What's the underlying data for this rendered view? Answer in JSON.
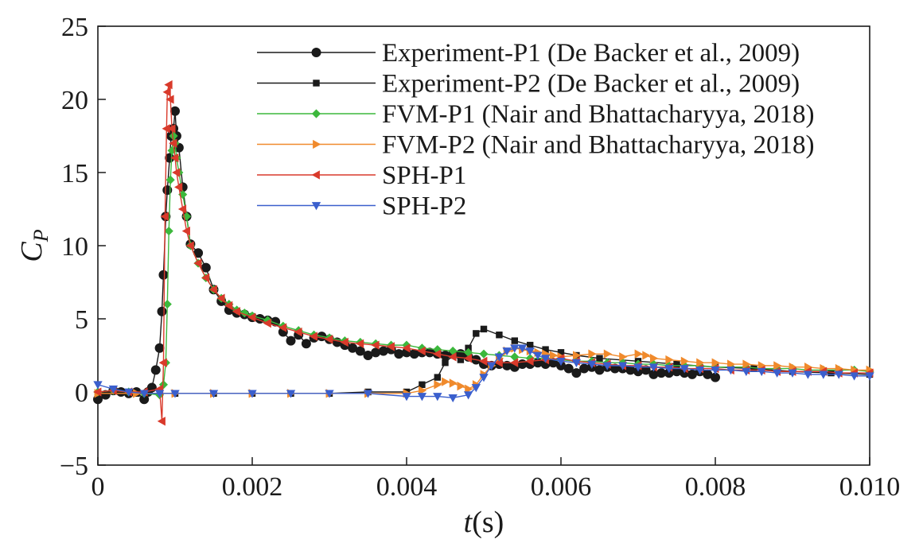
{
  "chart_data": {
    "type": "line",
    "title": "",
    "xlabel_italic": "t",
    "xlabel_unit": "(s)",
    "ylabel_main": "C",
    "ylabel_sub": "P",
    "xlim": [
      0,
      0.01
    ],
    "ylim": [
      -5,
      25
    ],
    "grid": false,
    "legend_position": "top-right",
    "x_ticks": [
      0,
      0.002,
      0.004,
      0.006,
      0.008,
      0.01
    ],
    "x_tick_labels": [
      "0",
      "0.002",
      "0.004",
      "0.006",
      "0.008",
      "0.010"
    ],
    "y_ticks": [
      -5,
      0,
      5,
      10,
      15,
      20,
      25
    ],
    "y_tick_labels": [
      "−5",
      "0",
      "5",
      "10",
      "15",
      "20",
      "25"
    ],
    "series": [
      {
        "name": "Experiment-P1 (De Backer et al., 2009)",
        "color": "#1a1a1a",
        "marker": "circle",
        "x": [
          0,
          0.0001,
          0.0002,
          0.0003,
          0.0004,
          0.0005,
          0.0006,
          0.00065,
          0.0007,
          0.00075,
          0.0008,
          0.00083,
          0.00085,
          0.00088,
          0.0009,
          0.00093,
          0.00095,
          0.00098,
          0.001,
          0.00102,
          0.00105,
          0.0011,
          0.00115,
          0.0012,
          0.0013,
          0.0014,
          0.0015,
          0.0016,
          0.0017,
          0.0018,
          0.0019,
          0.002,
          0.0021,
          0.0022,
          0.0023,
          0.0024,
          0.0025,
          0.0026,
          0.0027,
          0.0028,
          0.0029,
          0.003,
          0.0031,
          0.0032,
          0.0033,
          0.0034,
          0.0035,
          0.0036,
          0.0037,
          0.0038,
          0.0039,
          0.004,
          0.0041,
          0.0042,
          0.0043,
          0.0044,
          0.0045,
          0.0046,
          0.0047,
          0.0048,
          0.0049,
          0.005,
          0.0051,
          0.0052,
          0.0053,
          0.0054,
          0.0055,
          0.0056,
          0.0057,
          0.0058,
          0.0059,
          0.006,
          0.0061,
          0.0062,
          0.0063,
          0.0064,
          0.0065,
          0.0066,
          0.0067,
          0.0068,
          0.0069,
          0.007,
          0.0071,
          0.0072,
          0.0073,
          0.0074,
          0.0075,
          0.0076,
          0.0077,
          0.0078,
          0.0079,
          0.008
        ],
        "y": [
          -0.5,
          -0.2,
          0.1,
          0,
          -0.1,
          0,
          -0.5,
          0,
          0.3,
          1.5,
          3.0,
          5.5,
          8.0,
          12.0,
          13.8,
          16.0,
          17.5,
          18.0,
          19.2,
          17.5,
          16.7,
          14.0,
          12.0,
          10.1,
          9.5,
          8.5,
          7.0,
          6.2,
          5.6,
          5.4,
          5.3,
          5.1,
          5.0,
          4.9,
          4.8,
          4.1,
          3.5,
          3.9,
          3.3,
          3.7,
          3.8,
          3.6,
          3.4,
          3.2,
          3.0,
          2.8,
          2.5,
          2.7,
          2.8,
          2.9,
          2.6,
          2.7,
          2.6,
          2.7,
          2.7,
          2.6,
          2.5,
          2.6,
          2.6,
          2.4,
          2.2,
          1.9,
          1.8,
          1.9,
          1.8,
          1.7,
          1.9,
          1.9,
          2.0,
          1.9,
          2.0,
          1.8,
          1.6,
          1.3,
          1.6,
          1.7,
          1.5,
          1.7,
          1.6,
          1.6,
          1.5,
          1.4,
          1.5,
          1.2,
          1.3,
          1.3,
          1.4,
          1.3,
          1.2,
          1.4,
          1.2,
          1.0
        ]
      },
      {
        "name": "Experiment-P2 (De Backer et al., 2009)",
        "color": "#1a1a1a",
        "marker": "square",
        "x": [
          0,
          0.0005,
          0.001,
          0.0015,
          0.002,
          0.0025,
          0.003,
          0.0035,
          0.004,
          0.0042,
          0.0044,
          0.0045,
          0.0046,
          0.0047,
          0.0048,
          0.0049,
          0.005,
          0.0052,
          0.0054,
          0.0056,
          0.0058,
          0.006,
          0.0062,
          0.0065,
          0.007,
          0.0075,
          0.008,
          0.0085,
          0.009,
          0.0095,
          0.01
        ],
        "y": [
          -0.1,
          -0.1,
          -0.1,
          -0.1,
          -0.1,
          -0.1,
          -0.1,
          0.0,
          0.0,
          0.5,
          1.0,
          2.0,
          2.5,
          2.2,
          3.0,
          4.0,
          4.3,
          3.9,
          3.5,
          3.2,
          2.9,
          2.7,
          2.5,
          2.3,
          2.1,
          1.9,
          1.7,
          1.6,
          1.4,
          1.3,
          1.2
        ]
      },
      {
        "name": "FVM-P1 (Nair and Bhattacharyya, 2018)",
        "color": "#3cb83c",
        "marker": "diamond",
        "x": [
          0,
          0.0002,
          0.0004,
          0.0006,
          0.0008,
          0.00085,
          0.00088,
          0.0009,
          0.00092,
          0.00094,
          0.00096,
          0.00098,
          0.001,
          0.00102,
          0.00105,
          0.0011,
          0.00115,
          0.0012,
          0.0013,
          0.0014,
          0.0015,
          0.0016,
          0.0017,
          0.0018,
          0.0019,
          0.002,
          0.0022,
          0.0024,
          0.0026,
          0.0028,
          0.003,
          0.0032,
          0.0034,
          0.0036,
          0.0038,
          0.004,
          0.0042,
          0.0044,
          0.0046,
          0.0048,
          0.005,
          0.0052,
          0.0054,
          0.0056,
          0.0058,
          0.006,
          0.0062,
          0.0064,
          0.0066,
          0.0068,
          0.007,
          0.0072,
          0.0074,
          0.0076,
          0.0078,
          0.008,
          0.0082,
          0.0084,
          0.0086,
          0.0088,
          0.009,
          0.0092,
          0.0094,
          0.0096,
          0.0098,
          0.01
        ],
        "y": [
          0,
          0.1,
          0,
          -0.1,
          -0.2,
          0.5,
          2.0,
          6.0,
          11.0,
          14.5,
          16.5,
          17.5,
          17.0,
          16.0,
          15.0,
          13.5,
          12.0,
          10.0,
          8.8,
          7.8,
          7.0,
          6.4,
          6.0,
          5.6,
          5.4,
          5.2,
          4.9,
          4.5,
          4.2,
          3.9,
          3.7,
          3.5,
          3.4,
          3.3,
          3.2,
          3.2,
          3.0,
          2.9,
          2.8,
          2.7,
          2.6,
          2.5,
          2.4,
          2.3,
          2.3,
          2.2,
          2.1,
          2.1,
          2.0,
          2.0,
          1.9,
          1.9,
          1.8,
          1.8,
          1.8,
          1.7,
          1.7,
          1.7,
          1.6,
          1.6,
          1.6,
          1.5,
          1.5,
          1.5,
          1.5,
          1.4
        ]
      },
      {
        "name": "FVM-P2 (Nair and Bhattacharyya, 2018)",
        "color": "#f08a2c",
        "marker": "triangle-right",
        "x": [
          0,
          0.0005,
          0.001,
          0.0015,
          0.002,
          0.0025,
          0.003,
          0.0035,
          0.004,
          0.0042,
          0.0044,
          0.0045,
          0.0046,
          0.0047,
          0.0048,
          0.0049,
          0.005,
          0.0051,
          0.0052,
          0.0053,
          0.0054,
          0.0055,
          0.0056,
          0.0057,
          0.0058,
          0.0059,
          0.006,
          0.0062,
          0.0064,
          0.0066,
          0.0068,
          0.007,
          0.0071,
          0.0072,
          0.0074,
          0.0076,
          0.0078,
          0.008,
          0.0082,
          0.0084,
          0.0086,
          0.0088,
          0.009,
          0.0092,
          0.0094,
          0.0096,
          0.0098,
          0.01
        ],
        "y": [
          -0.1,
          -0.1,
          -0.1,
          -0.1,
          -0.1,
          -0.1,
          -0.1,
          -0.1,
          -0.1,
          0.1,
          0.5,
          0.7,
          0.6,
          0.4,
          0.2,
          0.5,
          1.2,
          1.8,
          2.3,
          2.8,
          3.0,
          2.9,
          2.8,
          2.7,
          2.6,
          2.5,
          2.4,
          2.5,
          2.6,
          2.6,
          2.4,
          2.6,
          2.5,
          2.3,
          2.2,
          2.1,
          2.0,
          2.0,
          1.9,
          1.9,
          1.8,
          1.8,
          1.7,
          1.7,
          1.6,
          1.6,
          1.5,
          1.5
        ]
      },
      {
        "name": "SPH-P1",
        "color": "#d93a2b",
        "marker": "triangle-left",
        "x": [
          0,
          0.0002,
          0.0004,
          0.0006,
          0.0008,
          0.00083,
          0.00085,
          0.00087,
          0.00089,
          0.0009,
          0.00092,
          0.00094,
          0.00096,
          0.00098,
          0.001,
          0.00102,
          0.00105,
          0.0011,
          0.00115,
          0.0012,
          0.0013,
          0.0014,
          0.0015,
          0.0016,
          0.0017,
          0.0018,
          0.002,
          0.0022,
          0.0024,
          0.0026,
          0.0028,
          0.003,
          0.0032,
          0.0034,
          0.0036,
          0.0038,
          0.004,
          0.0042,
          0.0044,
          0.0046,
          0.0048,
          0.005,
          0.0052,
          0.0054,
          0.0056,
          0.0058,
          0.006,
          0.0062,
          0.0064,
          0.0066,
          0.0068,
          0.007,
          0.0072,
          0.0074,
          0.0076,
          0.0078,
          0.008,
          0.0082,
          0.0084,
          0.0086,
          0.0088,
          0.009,
          0.0092,
          0.0094,
          0.0096,
          0.0098,
          0.01
        ],
        "y": [
          0,
          0.1,
          0,
          0,
          0.2,
          -2.0,
          2.0,
          12.0,
          18.0,
          20.5,
          21.0,
          20.0,
          18.0,
          17.0,
          16.0,
          15.0,
          14.0,
          12.5,
          11.0,
          10.0,
          8.8,
          7.8,
          7.0,
          6.4,
          5.9,
          5.5,
          5.1,
          4.7,
          4.4,
          4.1,
          3.8,
          3.6,
          3.4,
          3.3,
          3.2,
          3.1,
          3.0,
          2.8,
          2.6,
          2.4,
          2.3,
          2.1,
          2.0,
          2.0,
          2.1,
          2.2,
          2.3,
          2.1,
          2.0,
          1.9,
          1.8,
          1.8,
          1.7,
          1.7,
          1.6,
          1.6,
          1.6,
          1.5,
          1.5,
          1.5,
          1.4,
          1.4,
          1.4,
          1.4,
          1.3,
          1.3,
          1.3
        ]
      },
      {
        "name": "SPH-P2",
        "color": "#3a5fcd",
        "marker": "triangle-down",
        "x": [
          0,
          0.0002,
          0.0004,
          0.0006,
          0.0008,
          0.001,
          0.0015,
          0.002,
          0.0025,
          0.003,
          0.0035,
          0.004,
          0.0042,
          0.0044,
          0.0046,
          0.0048,
          0.0049,
          0.005,
          0.0051,
          0.0052,
          0.0053,
          0.0054,
          0.0055,
          0.0056,
          0.0057,
          0.0058,
          0.006,
          0.0062,
          0.0064,
          0.0066,
          0.0068,
          0.007,
          0.0072,
          0.0074,
          0.0076,
          0.0078,
          0.008,
          0.0082,
          0.0084,
          0.0086,
          0.0088,
          0.009,
          0.0092,
          0.0094,
          0.0096,
          0.0098,
          0.01
        ],
        "y": [
          0.5,
          0.2,
          0,
          -0.1,
          -0.1,
          -0.1,
          -0.1,
          -0.1,
          -0.1,
          -0.1,
          -0.1,
          -0.3,
          -0.3,
          -0.3,
          -0.4,
          -0.2,
          0.3,
          1.0,
          1.8,
          2.4,
          2.8,
          3.0,
          3.0,
          2.8,
          2.5,
          2.3,
          2.1,
          2.0,
          1.9,
          1.8,
          1.8,
          1.7,
          1.7,
          1.6,
          1.6,
          1.5,
          1.5,
          1.5,
          1.4,
          1.4,
          1.3,
          1.3,
          1.2,
          1.2,
          1.2,
          1.1,
          1.1
        ]
      }
    ]
  }
}
